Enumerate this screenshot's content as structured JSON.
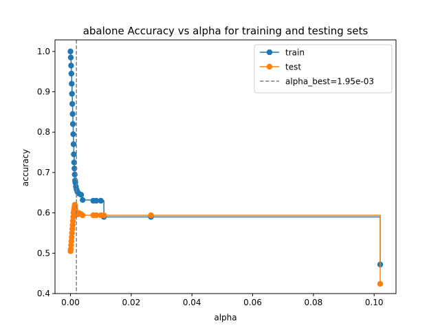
{
  "chart_data": {
    "type": "line",
    "title": "abalone Accuracy vs alpha for training and testing sets",
    "xlabel": "alpha",
    "ylabel": "accuracy",
    "xlim": [
      -0.0051,
      0.1072
    ],
    "ylim": [
      0.4,
      1.0287
    ],
    "x_ticks": [
      0.0,
      0.02,
      0.04,
      0.06,
      0.08,
      0.1
    ],
    "x_tick_labels": [
      "0.00",
      "0.02",
      "0.04",
      "0.06",
      "0.08",
      "0.10"
    ],
    "y_ticks": [
      0.4,
      0.5,
      0.6,
      0.7,
      0.8,
      0.9,
      1.0
    ],
    "y_tick_labels": [
      "0.4",
      "0.5",
      "0.6",
      "0.7",
      "0.8",
      "0.9",
      "1.0"
    ],
    "grid": false,
    "legend_position": "top-right",
    "step": "post",
    "series": [
      {
        "name": "train",
        "color": "#1f77b4",
        "marker": "circle",
        "x": [
          0.0,
          0.0001,
          0.0002,
          0.0003,
          0.0004,
          0.0005,
          0.0006,
          0.0007,
          0.0008,
          0.0009,
          0.001,
          0.0011,
          0.0012,
          0.0013,
          0.0014,
          0.0015,
          0.0016,
          0.0018,
          0.002,
          0.0023,
          0.0027,
          0.0035,
          0.004,
          0.0075,
          0.0085,
          0.01,
          0.011,
          0.0265,
          0.102
        ],
        "y": [
          1.0,
          0.985,
          0.965,
          0.945,
          0.92,
          0.895,
          0.87,
          0.845,
          0.82,
          0.795,
          0.77,
          0.745,
          0.725,
          0.71,
          0.695,
          0.68,
          0.675,
          0.665,
          0.658,
          0.652,
          0.648,
          0.645,
          0.632,
          0.63,
          0.63,
          0.63,
          0.59,
          0.59,
          0.472
        ]
      },
      {
        "name": "test",
        "color": "#ff7f0e",
        "marker": "circle",
        "x": [
          0.0,
          0.0001,
          0.0002,
          0.0003,
          0.0004,
          0.0005,
          0.0006,
          0.0007,
          0.0008,
          0.0009,
          0.001,
          0.0011,
          0.0012,
          0.0013,
          0.0014,
          0.0015,
          0.0016,
          0.0018,
          0.002,
          0.0023,
          0.0027,
          0.0035,
          0.004,
          0.0075,
          0.0085,
          0.01,
          0.011,
          0.0265,
          0.102
        ],
        "y": [
          0.505,
          0.51,
          0.52,
          0.53,
          0.54,
          0.55,
          0.56,
          0.57,
          0.58,
          0.59,
          0.6,
          0.605,
          0.61,
          0.615,
          0.62,
          0.618,
          0.61,
          0.6,
          0.598,
          0.596,
          0.6,
          0.597,
          0.594,
          0.594,
          0.594,
          0.594,
          0.594,
          0.594,
          0.424
        ]
      },
      {
        "name": "alpha_best=1.95e-03",
        "color": "#808080",
        "line_style": "dashed",
        "vertical_line_x": 0.00195
      }
    ]
  }
}
